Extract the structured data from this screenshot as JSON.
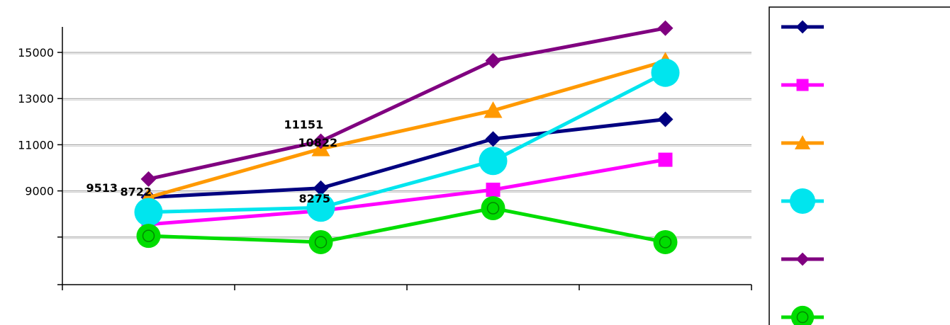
{
  "chart_data": {
    "type": "line",
    "categories": [
      "",
      "",
      "",
      ""
    ],
    "ylim": [
      6000,
      16500
    ],
    "yticks": [
      {
        "value": 9000,
        "label": "9000"
      },
      {
        "value": 11000,
        "label": "11000"
      },
      {
        "value": 13000,
        "label": "13000"
      },
      {
        "value": 15000,
        "label": "15000"
      }
    ],
    "grid": true,
    "legend_position": "right",
    "series": [
      {
        "color": "#000080",
        "marker": "diamond",
        "values": [
          8722,
          9120,
          11250,
          12100
        ]
      },
      {
        "color": "#ff00ff",
        "marker": "square",
        "values": [
          7550,
          8140,
          9050,
          10350
        ]
      },
      {
        "color": "#ff9900",
        "marker": "triangle",
        "values": [
          8720,
          10822,
          12480,
          14620
        ]
      },
      {
        "color": "#00e5ee",
        "marker": "circle",
        "values": [
          8080,
          8275,
          10300,
          14120
        ]
      },
      {
        "color": "#800080",
        "marker": "diamond",
        "values": [
          9513,
          11151,
          14640,
          16050
        ]
      },
      {
        "color": "#00dd00",
        "marker": "ringed-circle",
        "values": [
          7050,
          6780,
          8250,
          6780
        ]
      }
    ],
    "data_labels": [
      {
        "text": "9513",
        "series": 4,
        "point": 0
      },
      {
        "text": "8722",
        "series": 0,
        "point": 0
      },
      {
        "text": "11151",
        "series": 4,
        "point": 1
      },
      {
        "text": "10822",
        "series": 2,
        "point": 1
      },
      {
        "text": "8275",
        "series": 3,
        "point": 1
      }
    ]
  }
}
